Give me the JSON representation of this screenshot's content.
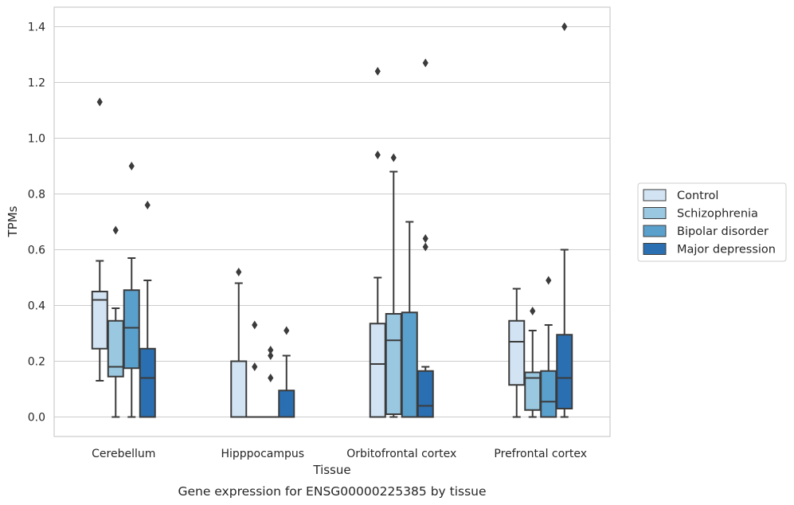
{
  "chart_data": {
    "type": "box",
    "caption": "Gene expression for ENSG00000225385 by tissue",
    "xlabel": "Tissue",
    "ylabel": "TPMs",
    "ylim": [
      -0.07,
      1.47
    ],
    "yticks": [
      0.0,
      0.2,
      0.4,
      0.6,
      0.8,
      1.0,
      1.2,
      1.4
    ],
    "ytick_labels": [
      "0.0",
      "0.2",
      "0.4",
      "0.6",
      "0.8",
      "1.0",
      "1.2",
      "1.4"
    ],
    "grid": "horizontal",
    "legend_position": "right",
    "categories": [
      "Cerebellum",
      "Hipppocampus",
      "Orbitofrontal cortex",
      "Prefrontal cortex"
    ],
    "series": [
      {
        "name": "Control",
        "color": "#d2e3f3",
        "boxes": [
          {
            "whislo": 0.13,
            "q1": 0.245,
            "med": 0.42,
            "q3": 0.45,
            "whishi": 0.56,
            "fliers": [
              1.13
            ]
          },
          {
            "whislo": 0.0,
            "q1": 0.0,
            "med": 0.0,
            "q3": 0.2,
            "whishi": 0.48,
            "fliers": [
              0.52
            ]
          },
          {
            "whislo": 0.0,
            "q1": 0.0,
            "med": 0.19,
            "q3": 0.335,
            "whishi": 0.5,
            "fliers": [
              0.94,
              1.24
            ]
          },
          {
            "whislo": 0.0,
            "q1": 0.115,
            "med": 0.27,
            "q3": 0.345,
            "whishi": 0.46,
            "fliers": []
          }
        ]
      },
      {
        "name": "Schizophrenia",
        "color": "#9ac8e0",
        "boxes": [
          {
            "whislo": 0.0,
            "q1": 0.145,
            "med": 0.18,
            "q3": 0.345,
            "whishi": 0.39,
            "fliers": [
              0.67
            ]
          },
          {
            "whislo": 0.0,
            "q1": 0.0,
            "med": 0.0,
            "q3": 0.0,
            "whishi": 0.0,
            "fliers": [
              0.18,
              0.33
            ]
          },
          {
            "whislo": 0.0,
            "q1": 0.01,
            "med": 0.275,
            "q3": 0.37,
            "whishi": 0.88,
            "fliers": [
              0.93
            ]
          },
          {
            "whislo": 0.0,
            "q1": 0.025,
            "med": 0.14,
            "q3": 0.16,
            "whishi": 0.31,
            "fliers": [
              0.38
            ]
          }
        ]
      },
      {
        "name": "Bipolar disorder",
        "color": "#5aa0cd",
        "boxes": [
          {
            "whislo": 0.0,
            "q1": 0.175,
            "med": 0.32,
            "q3": 0.455,
            "whishi": 0.57,
            "fliers": [
              0.9
            ]
          },
          {
            "whislo": 0.0,
            "q1": 0.0,
            "med": 0.0,
            "q3": 0.0,
            "whishi": 0.0,
            "fliers": [
              0.14,
              0.22,
              0.24
            ]
          },
          {
            "whislo": 0.0,
            "q1": 0.0,
            "med": 0.0,
            "q3": 0.375,
            "whishi": 0.7,
            "fliers": []
          },
          {
            "whislo": 0.0,
            "q1": 0.0,
            "med": 0.055,
            "q3": 0.165,
            "whishi": 0.33,
            "fliers": [
              0.49
            ]
          }
        ]
      },
      {
        "name": "Major depression",
        "color": "#2a6fb1",
        "boxes": [
          {
            "whislo": 0.0,
            "q1": 0.0,
            "med": 0.14,
            "q3": 0.245,
            "whishi": 0.49,
            "fliers": [
              0.76
            ]
          },
          {
            "whislo": 0.0,
            "q1": 0.0,
            "med": 0.0,
            "q3": 0.095,
            "whishi": 0.22,
            "fliers": [
              0.31
            ]
          },
          {
            "whislo": 0.0,
            "q1": 0.0,
            "med": 0.04,
            "q3": 0.165,
            "whishi": 0.18,
            "fliers": [
              0.61,
              0.64,
              1.27
            ]
          },
          {
            "whislo": 0.0,
            "q1": 0.03,
            "med": 0.14,
            "q3": 0.295,
            "whishi": 0.6,
            "fliers": [
              1.4
            ]
          }
        ]
      }
    ],
    "line_color": "#3b3b3b",
    "grid_color": "#cccccc",
    "spine_color": "#cccccc"
  }
}
